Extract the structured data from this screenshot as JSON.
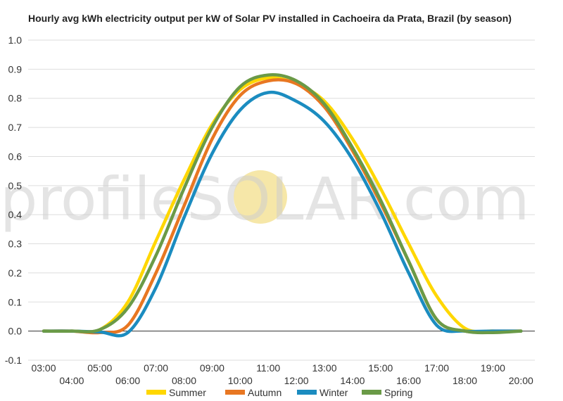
{
  "chart_data": {
    "type": "line",
    "title": "Hourly avg kWh electricity output per kW of Solar PV installed in Cachoeira da Prata, Brazil (by season)",
    "xlabel": "",
    "ylabel": "",
    "ylim": [
      -0.1,
      1.0
    ],
    "yticks": [
      "-0.1",
      "0.0",
      "0.1",
      "0.2",
      "0.3",
      "0.4",
      "0.5",
      "0.6",
      "0.7",
      "0.8",
      "0.9",
      "1.0"
    ],
    "x": [
      "03:00",
      "04:00",
      "05:00",
      "06:00",
      "07:00",
      "08:00",
      "09:00",
      "10:00",
      "11:00",
      "12:00",
      "13:00",
      "14:00",
      "15:00",
      "16:00",
      "17:00",
      "18:00",
      "19:00",
      "20:00"
    ],
    "grid": true,
    "legend_position": "bottom",
    "series": [
      {
        "name": "Summer",
        "color": "#FFD700",
        "values": [
          0.0,
          0.0,
          0.005,
          0.1,
          0.31,
          0.52,
          0.71,
          0.83,
          0.87,
          0.85,
          0.79,
          0.66,
          0.49,
          0.3,
          0.12,
          0.01,
          0.0,
          0.0
        ]
      },
      {
        "name": "Autumn",
        "color": "#E87722",
        "values": [
          0.0,
          0.0,
          -0.005,
          0.02,
          0.2,
          0.43,
          0.66,
          0.81,
          0.86,
          0.85,
          0.77,
          0.62,
          0.44,
          0.24,
          0.04,
          0.0,
          0.0,
          0.0
        ]
      },
      {
        "name": "Winter",
        "color": "#1B8CC0",
        "values": [
          0.0,
          0.0,
          -0.003,
          -0.005,
          0.15,
          0.39,
          0.61,
          0.76,
          0.82,
          0.79,
          0.72,
          0.59,
          0.41,
          0.2,
          0.02,
          0.0,
          0.0,
          0.0
        ]
      },
      {
        "name": "Spring",
        "color": "#6A9A47",
        "values": [
          0.0,
          0.0,
          0.005,
          0.08,
          0.26,
          0.49,
          0.7,
          0.84,
          0.88,
          0.86,
          0.78,
          0.63,
          0.45,
          0.24,
          0.04,
          0.0,
          -0.005,
          0.0
        ]
      }
    ]
  },
  "watermark": {
    "text": "profileSOLAR.com",
    "sun_color": "#F6E7A8"
  }
}
